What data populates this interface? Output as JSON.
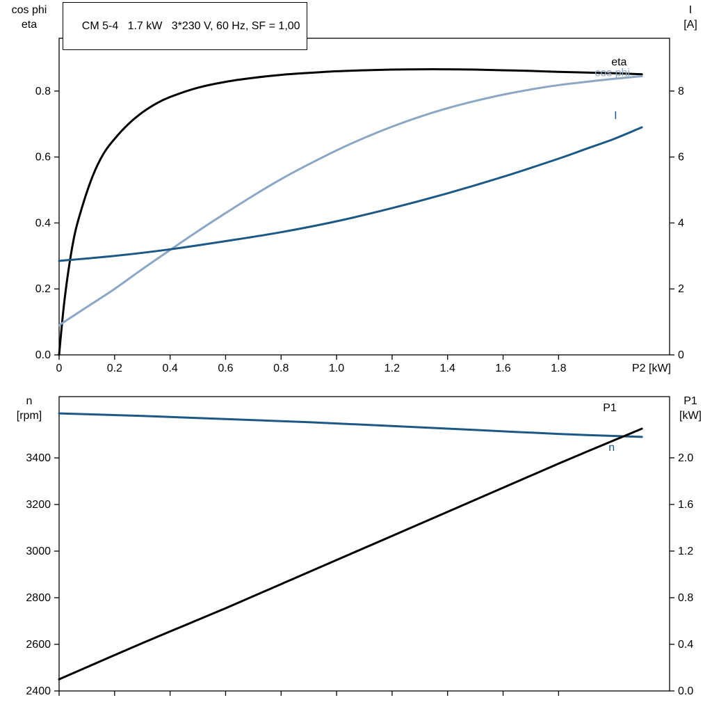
{
  "title_box": {
    "text": "CM 5-4   1.7 kW   3*230 V, 60 Hz, SF = 1,00"
  },
  "axis_corner_labels": {
    "top_left": [
      "cos phi",
      "eta"
    ],
    "top_right": [
      "I",
      "[A]"
    ],
    "bottom_left": [
      "n",
      "[rpm]"
    ],
    "bottom_right": [
      "P1",
      "[kW]"
    ]
  },
  "colors": {
    "axis": "#000000",
    "black": "#000000",
    "dark_blue": "#1c5886",
    "light_blue": "#8ca7c3"
  },
  "chart_data": [
    {
      "type": "line",
      "title": "CM 5-4   1.7 kW   3*230 V, 60 Hz, SF = 1,00",
      "grid": false,
      "legend_position": "inline-labels",
      "x_axis": {
        "min": 0,
        "max": 2.2,
        "label": "P2 [kW]",
        "ticks": [
          0,
          0.2,
          0.4,
          0.6,
          0.8,
          1.0,
          1.2,
          1.4,
          1.6,
          1.8
        ],
        "tick_labels": [
          "0",
          "0.2",
          "0.4",
          "0.6",
          "0.8",
          "1.0",
          "1.2",
          "1.4",
          "1.6",
          "1.8"
        ]
      },
      "left_axis": {
        "title": "cos phi / eta",
        "min": 0,
        "max": 0.96,
        "ticks": [
          0,
          0.2,
          0.4,
          0.6,
          0.8
        ],
        "tick_labels": [
          "0.0",
          "0.2",
          "0.4",
          "0.6",
          "0.8"
        ]
      },
      "right_axis": {
        "title": "I [A]",
        "min": 0,
        "max": 9.6,
        "ticks": [
          0,
          2,
          4,
          6,
          8
        ],
        "tick_labels": [
          "0",
          "2",
          "4",
          "6",
          "8"
        ]
      },
      "series": [
        {
          "name": "eta",
          "axis": "left",
          "color": "#000000",
          "width": 3,
          "label": {
            "text": "eta",
            "x": 1.99,
            "y": 0.878
          },
          "points": [
            [
              0,
              0
            ],
            [
              0.02,
              0.17
            ],
            [
              0.05,
              0.34
            ],
            [
              0.08,
              0.44
            ],
            [
              0.12,
              0.54
            ],
            [
              0.16,
              0.61
            ],
            [
              0.2,
              0.655
            ],
            [
              0.25,
              0.7
            ],
            [
              0.3,
              0.735
            ],
            [
              0.35,
              0.762
            ],
            [
              0.4,
              0.782
            ],
            [
              0.5,
              0.81
            ],
            [
              0.6,
              0.828
            ],
            [
              0.7,
              0.84
            ],
            [
              0.8,
              0.849
            ],
            [
              0.9,
              0.855
            ],
            [
              1.0,
              0.86
            ],
            [
              1.1,
              0.863
            ],
            [
              1.2,
              0.865
            ],
            [
              1.3,
              0.866
            ],
            [
              1.4,
              0.866
            ],
            [
              1.5,
              0.865
            ],
            [
              1.6,
              0.863
            ],
            [
              1.7,
              0.861
            ],
            [
              1.8,
              0.858
            ],
            [
              1.9,
              0.856
            ],
            [
              2.0,
              0.854
            ],
            [
              2.1,
              0.851
            ]
          ]
        },
        {
          "name": "cos phi",
          "axis": "left",
          "color": "#8ca7c3",
          "width": 3,
          "label": {
            "text": "cos phi",
            "x": 1.93,
            "y": 0.845
          },
          "points": [
            [
              0,
              0.09
            ],
            [
              0.1,
              0.145
            ],
            [
              0.2,
              0.2
            ],
            [
              0.3,
              0.26
            ],
            [
              0.4,
              0.318
            ],
            [
              0.5,
              0.375
            ],
            [
              0.6,
              0.43
            ],
            [
              0.7,
              0.483
            ],
            [
              0.8,
              0.533
            ],
            [
              0.9,
              0.578
            ],
            [
              1.0,
              0.62
            ],
            [
              1.1,
              0.658
            ],
            [
              1.2,
              0.692
            ],
            [
              1.3,
              0.722
            ],
            [
              1.4,
              0.748
            ],
            [
              1.5,
              0.77
            ],
            [
              1.6,
              0.789
            ],
            [
              1.7,
              0.805
            ],
            [
              1.8,
              0.818
            ],
            [
              1.9,
              0.828
            ],
            [
              2.0,
              0.837
            ],
            [
              2.1,
              0.845
            ]
          ]
        },
        {
          "name": "I",
          "axis": "right",
          "color": "#1c5886",
          "width": 3,
          "label": {
            "text": "I",
            "x": 2.0,
            "y": 7.15
          },
          "points": [
            [
              0,
              2.85
            ],
            [
              0.2,
              3.0
            ],
            [
              0.4,
              3.2
            ],
            [
              0.6,
              3.45
            ],
            [
              0.8,
              3.72
            ],
            [
              1.0,
              4.05
            ],
            [
              1.2,
              4.45
            ],
            [
              1.4,
              4.9
            ],
            [
              1.6,
              5.4
            ],
            [
              1.8,
              5.95
            ],
            [
              1.9,
              6.25
            ],
            [
              2.0,
              6.55
            ],
            [
              2.1,
              6.9
            ]
          ]
        }
      ]
    },
    {
      "type": "line",
      "title": "",
      "grid": false,
      "legend_position": "inline-labels",
      "x_axis": {
        "min": 0,
        "max": 2.2,
        "label": "",
        "ticks": [
          0,
          0.2,
          0.4,
          0.6,
          0.8,
          1.0,
          1.2,
          1.4,
          1.6,
          1.8
        ],
        "tick_labels": []
      },
      "left_axis": {
        "title": "n [rpm]",
        "min": 2400,
        "max": 3663,
        "ticks": [
          2400,
          2600,
          2800,
          3000,
          3200,
          3400
        ],
        "tick_labels": [
          "2400",
          "2600",
          "2800",
          "3000",
          "3200",
          "3400"
        ]
      },
      "right_axis": {
        "title": "P1 [kW]",
        "min": 0,
        "max": 2.525,
        "ticks": [
          0,
          0.4,
          0.8,
          1.2,
          1.6,
          2.0
        ],
        "tick_labels": [
          "0.0",
          "0.4",
          "0.8",
          "1.2",
          "1.6",
          "2.0"
        ]
      },
      "series": [
        {
          "name": "n",
          "axis": "left",
          "color": "#1c5886",
          "width": 3,
          "label": {
            "text": "n",
            "x": 1.98,
            "y": 3430
          },
          "points": [
            [
              0,
              3591
            ],
            [
              0.3,
              3580
            ],
            [
              0.6,
              3567
            ],
            [
              0.9,
              3553
            ],
            [
              1.2,
              3537
            ],
            [
              1.5,
              3520
            ],
            [
              1.8,
              3503
            ],
            [
              2.1,
              3490
            ]
          ]
        },
        {
          "name": "P1",
          "axis": "right",
          "color": "#000000",
          "width": 3,
          "label": {
            "text": "P1",
            "x": 1.96,
            "y": 2.4
          },
          "points": [
            [
              0,
              0.1
            ],
            [
              0.3,
              0.41
            ],
            [
              0.6,
              0.71
            ],
            [
              0.9,
              1.02
            ],
            [
              1.2,
              1.33
            ],
            [
              1.5,
              1.64
            ],
            [
              1.8,
              1.95
            ],
            [
              2.1,
              2.25
            ]
          ]
        }
      ]
    }
  ]
}
